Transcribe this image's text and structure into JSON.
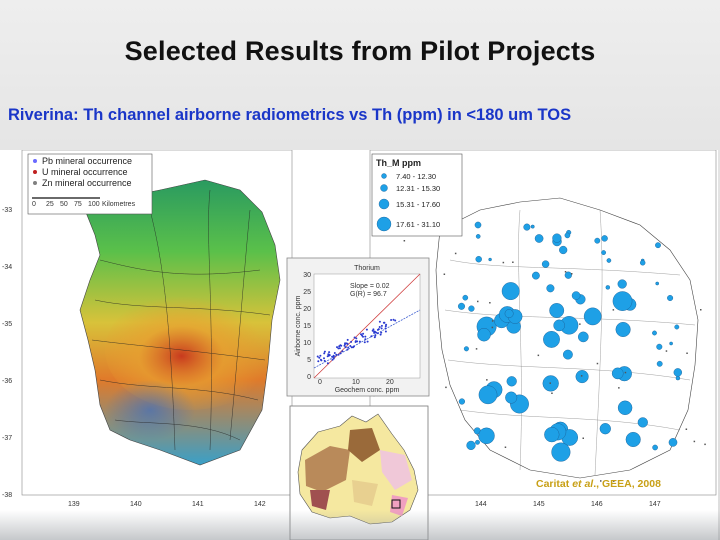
{
  "slide": {
    "title": "Selected Results from Pilot Projects",
    "subtitle": "Riverina: Th channel airborne radiometrics vs Th (ppm) in <180 um TOS"
  },
  "left_map": {
    "legend": [
      {
        "label": "Pb mineral occurrence",
        "color": "#6a6aff"
      },
      {
        "label": "U mineral occurrence",
        "color": "#c02020"
      },
      {
        "label": "Zn mineral occurrence",
        "color": "#808080"
      }
    ],
    "scale_ticks": [
      "0",
      "25",
      "50",
      "75",
      "100"
    ],
    "scale_unit": "Kilometres",
    "lat_ticks": [
      "-33",
      "-34",
      "-35",
      "-36",
      "-37",
      "-38"
    ],
    "lon_ticks": [
      "139",
      "140",
      "141",
      "142"
    ]
  },
  "right_map": {
    "legend_title": "Th_M ppm",
    "legend_classes": [
      {
        "label": "7.40 - 12.30",
        "color": "#1ea0e6"
      },
      {
        "label": "12.31 - 15.30",
        "color": "#1ea0e6"
      },
      {
        "label": "15.31 - 17.60",
        "color": "#1ea0e6"
      },
      {
        "label": "17.61 - 31.10",
        "color": "#1ea0e6"
      }
    ],
    "lon_ticks": [
      "144",
      "145",
      "146",
      "147"
    ]
  },
  "inset_scatter": {
    "title": "Thorium",
    "annotation_line1": "Slope = 0.02",
    "annotation_line2": "G(R) = 96.7",
    "ylabel": "Airborne conc. ppm",
    "xlabel": "Geochem conc. ppm",
    "x_ticks": [
      "0",
      "10",
      "20"
    ],
    "y_ticks": [
      "30",
      "25",
      "20",
      "15",
      "10",
      "5",
      "0"
    ]
  },
  "inset_map": {
    "region": "Australia geology",
    "colors": [
      "#b98a5a",
      "#f5e8a0",
      "#f0c8d8",
      "#9a6a3a",
      "#e8d090",
      "#a05050",
      "#f0a0c0"
    ]
  },
  "credit": {
    "author": "Caritat ",
    "etal": "et al",
    "rest": "., GEEA, 2008"
  }
}
